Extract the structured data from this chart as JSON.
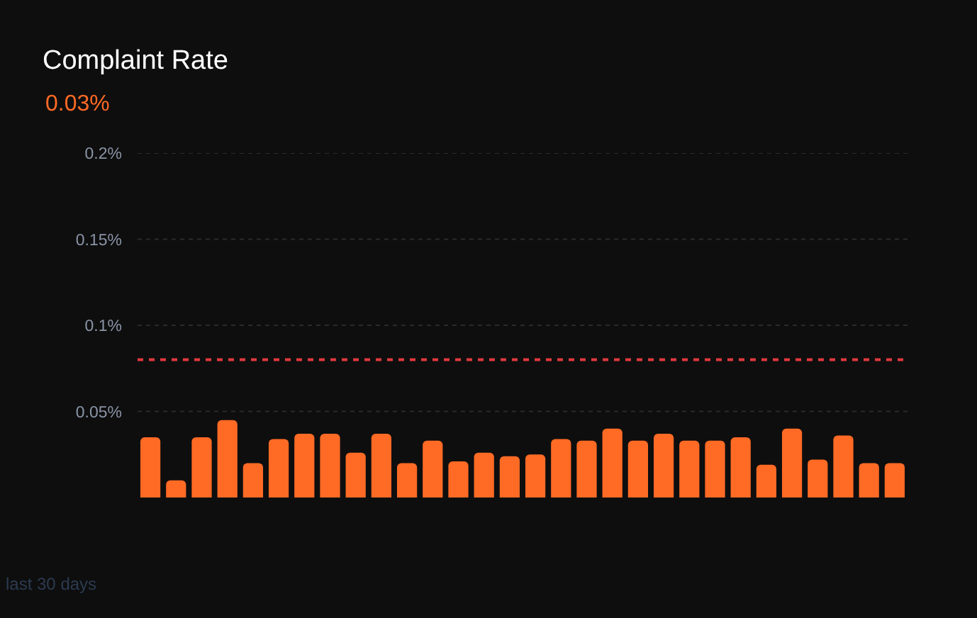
{
  "chart_data": {
    "type": "bar",
    "title": "Complaint Rate",
    "subtitle": "0.03%",
    "categories": [
      null,
      null,
      null,
      null,
      null,
      null,
      null,
      null,
      null,
      null,
      null,
      null,
      null,
      null,
      null,
      null,
      null,
      null,
      null,
      null,
      null,
      null,
      null,
      null,
      null,
      null,
      null,
      null,
      null,
      null
    ],
    "values": [
      0.035,
      0.01,
      0.035,
      0.045,
      0.02,
      0.034,
      0.037,
      0.037,
      0.026,
      0.037,
      0.02,
      0.033,
      0.021,
      0.026,
      0.024,
      0.025,
      0.034,
      0.033,
      0.04,
      0.033,
      0.037,
      0.033,
      0.033,
      0.035,
      0.019,
      0.04,
      0.022,
      0.036,
      0.02,
      0.02
    ],
    "color": "#ff6a25",
    "ylim": [
      0,
      0.2
    ],
    "yticks": [
      {
        "value": 0.05,
        "label": "0.05%"
      },
      {
        "value": 0.1,
        "label": "0.1%"
      },
      {
        "value": 0.15,
        "label": "0.15%"
      },
      {
        "value": 0.2,
        "label": "0.2%"
      }
    ],
    "grid": "y",
    "tick_labels": "y",
    "ref_lines": [
      {
        "axis": "y",
        "value": 0.08,
        "color": "#e0393e",
        "line_style": "dashed"
      }
    ],
    "annotations": [
      "last 30 days"
    ]
  }
}
